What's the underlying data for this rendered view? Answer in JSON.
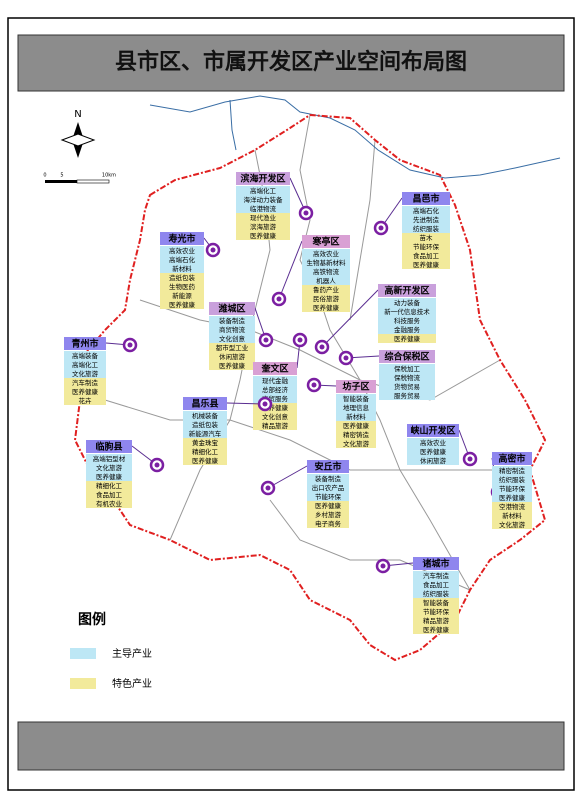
{
  "title": "县市区、市属开发区产业空间布局图",
  "compass": "N",
  "scale": [
    "0",
    "5",
    "10km"
  ],
  "legend": {
    "title": "图例",
    "items": [
      "主导产业",
      "特色产业"
    ]
  },
  "regions": [
    {
      "name": "滨海开发区",
      "main": [
        "高端化工",
        "海洋动力装备",
        "临港物流"
      ],
      "feature": [
        "现代渔业",
        "滨海旅游",
        "医养健康"
      ]
    },
    {
      "name": "昌邑市",
      "main": [
        "高端石化",
        "先进制造",
        "纺织服装"
      ],
      "feature": [
        "苗木",
        "节能环保",
        "食品加工",
        "医养健康"
      ]
    },
    {
      "name": "寿光市",
      "main": [
        "高效农业",
        "高端石化",
        "新材料"
      ],
      "feature": [
        "造纸包装",
        "生物医药",
        "新能源",
        "医养健康"
      ]
    },
    {
      "name": "寒亭区",
      "main": [
        "高效农业",
        "生物基新材料",
        "高铁物流",
        "机器人"
      ],
      "feature": [
        "鲁药产业",
        "民俗旅游",
        "医养健康"
      ]
    },
    {
      "name": "高新开发区",
      "main": [
        "动力装备",
        "新一代信息技术",
        "科技服务",
        "金融服务"
      ],
      "feature": [
        "医养健康"
      ]
    },
    {
      "name": "潍城区",
      "main": [
        "装备制造",
        "商贸物流",
        "文化创意"
      ],
      "feature": [
        "都市型工业",
        "休闲旅游",
        "医养健康"
      ]
    },
    {
      "name": "青州市",
      "main": [
        "高端装备",
        "高端化工",
        "文化旅游"
      ],
      "feature": [
        "汽车制造",
        "医养健康",
        "花卉"
      ]
    },
    {
      "name": "奎文区",
      "main": [
        "现代金融",
        "总部经济",
        "商贸服务"
      ],
      "feature": [
        "医养健康",
        "文化创意",
        "精品旅游"
      ]
    },
    {
      "name": "综合保税区",
      "main": [
        "保税加工",
        "保税物流",
        "货物贸易",
        "服务贸易"
      ]
    },
    {
      "name": "坊子区",
      "main": [
        "智能装备",
        "地理信息",
        "新材料"
      ],
      "feature": [
        "医养健康",
        "精密铸造",
        "文化旅游"
      ]
    },
    {
      "name": "昌乐县",
      "main": [
        "机械装备",
        "造纸包装",
        "新能源汽车"
      ],
      "feature": [
        "黄金珠宝",
        "精细化工",
        "医养健康"
      ]
    },
    {
      "name": "峡山开发区",
      "main": [
        "高效农业",
        "医养健康",
        "休闲旅游"
      ]
    },
    {
      "name": "临朐县",
      "main": [
        "高端铝型材",
        "文化旅游",
        "医养健康"
      ],
      "feature": [
        "精细化工",
        "食品加工",
        "有机农业"
      ]
    },
    {
      "name": "高密市",
      "main": [
        "精密制造",
        "纺织服装",
        "节能环保",
        "医养健康"
      ],
      "feature": [
        "空港物流",
        "新材料",
        "文化旅游"
      ]
    },
    {
      "name": "安丘市",
      "main": [
        "装备制造",
        "出口农产品",
        "节能环保"
      ],
      "feature": [
        "医养健康",
        "乡村旅游",
        "电子商务"
      ]
    },
    {
      "name": "诸城市",
      "main": [
        "汽车制造",
        "食品加工",
        "纺织服装"
      ],
      "feature": [
        "智能装备",
        "节能环保",
        "精品旅游",
        "医养健康"
      ]
    }
  ]
}
